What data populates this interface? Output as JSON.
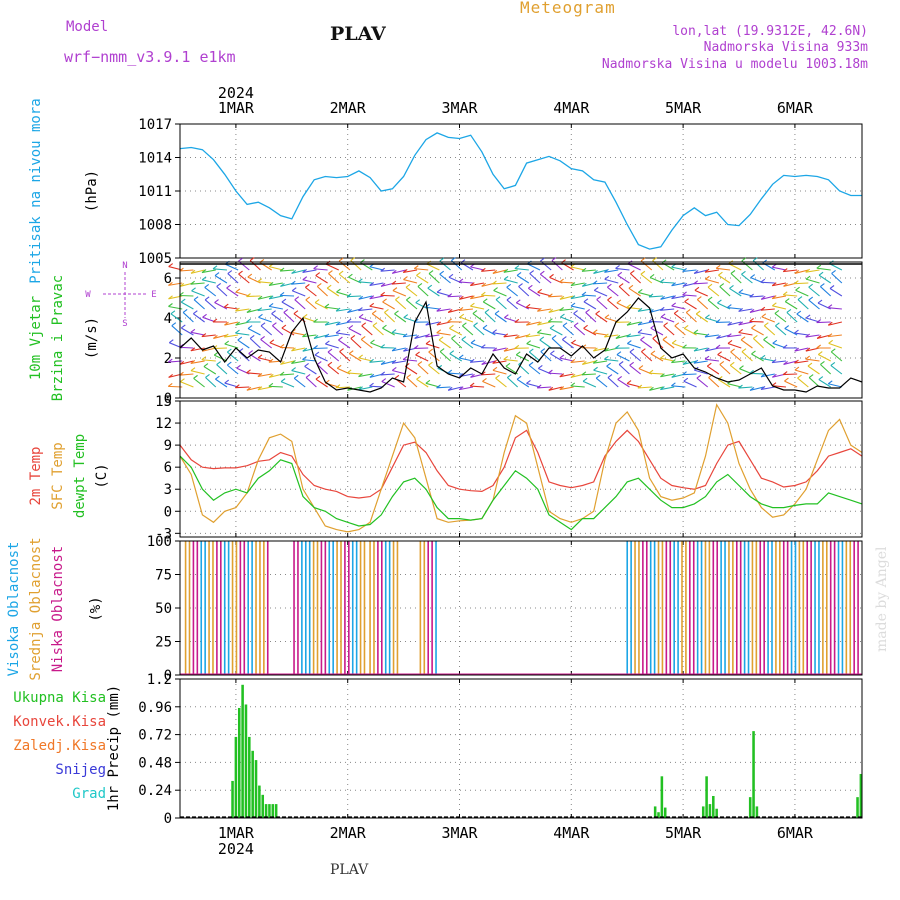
{
  "header": {
    "model_label": "Model",
    "model_name": "wrf−nmm_v3.9.1  e1km",
    "title": "Meteogram",
    "station": "PLAV",
    "lonlat": "lon,lat (19.9312E, 42.6N)",
    "elevation": "Nadmorska Visina 933m",
    "model_elevation": "Nadmorska Visina u modelu 1003.18m",
    "year": "2024",
    "footer_station": "PLAV",
    "watermark": "made by Angel"
  },
  "colors": {
    "pressure": "#1ca6e6",
    "temp2m": "#e8463c",
    "sfc": "#e0a030",
    "dewpt": "#22c022",
    "cloud_high": "#1ca6e6",
    "cloud_mid": "#e0a030",
    "cloud_low": "#c81a8a",
    "precip_total": "#22c022",
    "precip_conv": "#e8463c",
    "precip_frz": "#f07828",
    "precip_snow": "#3a3ad8",
    "precip_grad": "#20c8c8",
    "wind_label": "#22c022",
    "compass": "#b040d0"
  },
  "chart_data": [
    {
      "type": "line",
      "name": "pressure",
      "ylabel": [
        "Pritisak na nivou mora",
        "(hPa)"
      ],
      "ylim": [
        1005,
        1017
      ],
      "yticks": [
        1005,
        1008,
        1011,
        1014,
        1017
      ],
      "x_categories": [
        "1MAR",
        "2MAR",
        "3MAR",
        "4MAR",
        "5MAR",
        "6MAR"
      ],
      "x_range_days": [
        0.5,
        6.6
      ],
      "x": [
        0.5,
        0.6,
        0.7,
        0.8,
        0.9,
        1.0,
        1.1,
        1.2,
        1.3,
        1.4,
        1.5,
        1.6,
        1.7,
        1.8,
        1.9,
        2.0,
        2.1,
        2.2,
        2.3,
        2.4,
        2.5,
        2.6,
        2.7,
        2.8,
        2.9,
        3.0,
        3.1,
        3.2,
        3.3,
        3.4,
        3.5,
        3.6,
        3.7,
        3.8,
        3.9,
        4.0,
        4.1,
        4.2,
        4.3,
        4.4,
        4.5,
        4.6,
        4.7,
        4.8,
        4.9,
        5.0,
        5.1,
        5.2,
        5.3,
        5.4,
        5.5,
        5.6,
        5.7,
        5.8,
        5.9,
        6.0,
        6.1,
        6.2,
        6.3,
        6.4,
        6.5,
        6.6
      ],
      "values": [
        1014.8,
        1014.9,
        1014.7,
        1013.8,
        1012.5,
        1011.0,
        1009.8,
        1010.0,
        1009.5,
        1008.8,
        1008.5,
        1010.5,
        1012.0,
        1012.3,
        1012.2,
        1012.3,
        1012.8,
        1012.2,
        1011.0,
        1011.2,
        1012.3,
        1014.2,
        1015.6,
        1016.2,
        1015.8,
        1015.7,
        1016.0,
        1014.5,
        1012.5,
        1011.2,
        1011.5,
        1013.5,
        1013.8,
        1014.1,
        1013.7,
        1013.0,
        1012.8,
        1012.0,
        1011.8,
        1010.0,
        1008.0,
        1006.2,
        1005.8,
        1006.0,
        1007.5,
        1008.8,
        1009.5,
        1008.8,
        1009.1,
        1008.0,
        1007.9,
        1008.9,
        1010.3,
        1011.6,
        1012.4,
        1012.3,
        1012.4,
        1012.3,
        1012.0,
        1011.0,
        1010.6,
        1010.6
      ]
    },
    {
      "type": "line",
      "name": "wind",
      "ylabel": [
        "10m Vjetar",
        "Brzina i Pravac",
        "(m/s)"
      ],
      "compass": {
        "n": "N",
        "s": "S",
        "e": "E",
        "w": "W"
      },
      "ylim": [
        0,
        6.8
      ],
      "yticks": [
        0,
        2,
        4,
        6
      ],
      "x": [
        0.5,
        0.6,
        0.7,
        0.8,
        0.9,
        1.0,
        1.1,
        1.2,
        1.3,
        1.4,
        1.5,
        1.6,
        1.7,
        1.8,
        1.9,
        2.0,
        2.1,
        2.2,
        2.3,
        2.4,
        2.5,
        2.6,
        2.7,
        2.8,
        2.9,
        3.0,
        3.1,
        3.2,
        3.3,
        3.4,
        3.5,
        3.6,
        3.7,
        3.8,
        3.9,
        4.0,
        4.1,
        4.2,
        4.3,
        4.4,
        4.5,
        4.6,
        4.7,
        4.8,
        4.9,
        5.0,
        5.1,
        5.2,
        5.3,
        5.4,
        5.5,
        5.6,
        5.7,
        5.8,
        5.9,
        6.0,
        6.1,
        6.2,
        6.3,
        6.4,
        6.5,
        6.6
      ],
      "values": [
        2.5,
        3.0,
        2.4,
        2.6,
        1.8,
        2.5,
        2.0,
        2.4,
        2.3,
        1.8,
        3.3,
        4.0,
        2.0,
        0.8,
        0.4,
        0.5,
        0.4,
        0.3,
        0.5,
        1.0,
        0.8,
        3.8,
        4.8,
        1.6,
        1.2,
        1.0,
        1.5,
        1.2,
        2.2,
        1.5,
        1.2,
        2.2,
        1.8,
        2.5,
        2.5,
        2.1,
        2.6,
        2.0,
        2.4,
        3.8,
        4.3,
        5.0,
        4.5,
        2.5,
        2.0,
        2.2,
        1.5,
        1.3,
        1.0,
        0.8,
        0.9,
        1.2,
        1.5,
        0.6,
        0.4,
        0.4,
        0.3,
        0.6,
        0.5,
        0.5,
        1.0,
        0.8
      ]
    },
    {
      "type": "line",
      "name": "temperature",
      "ylabel": [
        "2m Temp",
        "SFC Temp",
        "dewpt Temp",
        "(C)"
      ],
      "ylim": [
        -3.5,
        15
      ],
      "yticks": [
        -3,
        0,
        3,
        6,
        9,
        12,
        15
      ],
      "x": [
        0.5,
        0.6,
        0.7,
        0.8,
        0.9,
        1.0,
        1.1,
        1.2,
        1.3,
        1.4,
        1.5,
        1.6,
        1.7,
        1.8,
        1.9,
        2.0,
        2.1,
        2.2,
        2.3,
        2.4,
        2.5,
        2.6,
        2.7,
        2.8,
        2.9,
        3.0,
        3.1,
        3.2,
        3.3,
        3.4,
        3.5,
        3.6,
        3.7,
        3.8,
        3.9,
        4.0,
        4.1,
        4.2,
        4.3,
        4.4,
        4.5,
        4.6,
        4.7,
        4.8,
        4.9,
        5.0,
        5.1,
        5.2,
        5.3,
        5.4,
        5.5,
        5.6,
        5.7,
        5.8,
        5.9,
        6.0,
        6.1,
        6.2,
        6.3,
        6.4,
        6.5,
        6.6
      ],
      "series": [
        {
          "key": "temp2m",
          "values": [
            9.0,
            7.0,
            6.0,
            5.8,
            5.9,
            5.9,
            6.2,
            6.8,
            7.0,
            8.0,
            7.5,
            5.0,
            3.5,
            3.0,
            2.7,
            2.0,
            1.8,
            2.0,
            3.0,
            6.0,
            9.0,
            9.4,
            8.0,
            5.5,
            3.5,
            3.0,
            2.8,
            2.7,
            3.5,
            6.0,
            10.0,
            11.0,
            8.0,
            4.0,
            3.5,
            3.2,
            3.5,
            4.0,
            7.5,
            9.5,
            11.0,
            9.5,
            7.0,
            4.5,
            3.5,
            3.2,
            3.0,
            3.5,
            6.5,
            9.0,
            9.5,
            7.0,
            4.5,
            4.0,
            3.3,
            3.5,
            4.0,
            5.5,
            7.5,
            8.0,
            8.5,
            7.5
          ]
        },
        {
          "key": "sfc",
          "values": [
            7.5,
            5.0,
            -0.5,
            -1.5,
            0.0,
            0.5,
            2.5,
            7.0,
            10.0,
            10.5,
            9.5,
            3.0,
            0.5,
            -2.0,
            -2.5,
            -2.8,
            -2.5,
            -1.5,
            3.0,
            7.5,
            12.0,
            10.0,
            4.5,
            -1.0,
            -1.5,
            -1.3,
            -1.2,
            -1.0,
            1.5,
            8.0,
            13.0,
            12.0,
            6.0,
            0.0,
            -1.0,
            -1.5,
            -1.0,
            0.0,
            7.0,
            12.0,
            13.5,
            11.0,
            4.5,
            2.0,
            1.5,
            1.8,
            2.5,
            7.5,
            14.5,
            12.0,
            6.5,
            3.0,
            0.5,
            -0.8,
            -0.5,
            1.0,
            3.0,
            7.0,
            11.0,
            12.5,
            9.0,
            8.0
          ]
        },
        {
          "key": "dewpt",
          "values": [
            7.5,
            6.0,
            3.0,
            1.5,
            2.5,
            3.0,
            2.5,
            4.5,
            5.5,
            7.0,
            6.5,
            2.0,
            0.5,
            0.0,
            -1.0,
            -1.5,
            -2.0,
            -1.8,
            -0.5,
            2.0,
            4.0,
            4.5,
            3.0,
            0.5,
            -1.0,
            -1.0,
            -1.2,
            -1.0,
            1.5,
            3.5,
            5.5,
            4.5,
            3.0,
            -0.5,
            -1.5,
            -2.5,
            -1.0,
            -1.0,
            0.5,
            2.0,
            4.0,
            4.5,
            3.0,
            1.5,
            0.5,
            0.5,
            1.0,
            2.0,
            4.0,
            5.0,
            3.5,
            2.0,
            1.0,
            0.5,
            0.5,
            0.8,
            1.0,
            1.0,
            2.5,
            2.0,
            1.5,
            1.0
          ]
        }
      ]
    },
    {
      "type": "bar",
      "name": "clouds",
      "ylabel": [
        "Visoka Oblacnost",
        "Srednja Oblacnost",
        "Niska Oblacnost",
        "(%)"
      ],
      "ylim": [
        0,
        100
      ],
      "yticks": [
        0,
        25,
        50,
        75,
        100
      ],
      "segments": [
        {
          "start": 0.55,
          "end": 1.3
        },
        {
          "start": 1.52,
          "end": 2.15
        },
        {
          "start": 2.2,
          "end": 2.45
        },
        {
          "start": 2.65,
          "end": 2.82
        },
        {
          "start": 4.5,
          "end": 6.6
        }
      ],
      "fill_level": 100
    },
    {
      "type": "bar",
      "name": "precipitation",
      "ylabel": [
        "1hr Precip (mm)"
      ],
      "legend": [
        "Ukupna Kisa",
        "Konvek.Kisa",
        "Zaledj.Kisa",
        "Snijeg",
        "Grad"
      ],
      "ylim": [
        0,
        1.2
      ],
      "yticks": [
        0,
        0.24,
        0.48,
        0.72,
        0.96,
        1.2
      ],
      "x": [
        0.97,
        1.0,
        1.03,
        1.06,
        1.09,
        1.12,
        1.15,
        1.18,
        1.21,
        1.24,
        1.27,
        1.3,
        1.33,
        1.36,
        4.75,
        4.78,
        4.81,
        4.84,
        5.18,
        5.21,
        5.24,
        5.27,
        5.3,
        5.6,
        5.63,
        5.66,
        6.56,
        6.59
      ],
      "values": [
        0.32,
        0.7,
        0.95,
        1.15,
        0.98,
        0.7,
        0.58,
        0.5,
        0.28,
        0.2,
        0.12,
        0.12,
        0.12,
        0.12,
        0.1,
        0.05,
        0.36,
        0.09,
        0.1,
        0.36,
        0.12,
        0.19,
        0.08,
        0.18,
        0.75,
        0.1,
        0.18,
        0.38
      ]
    }
  ]
}
